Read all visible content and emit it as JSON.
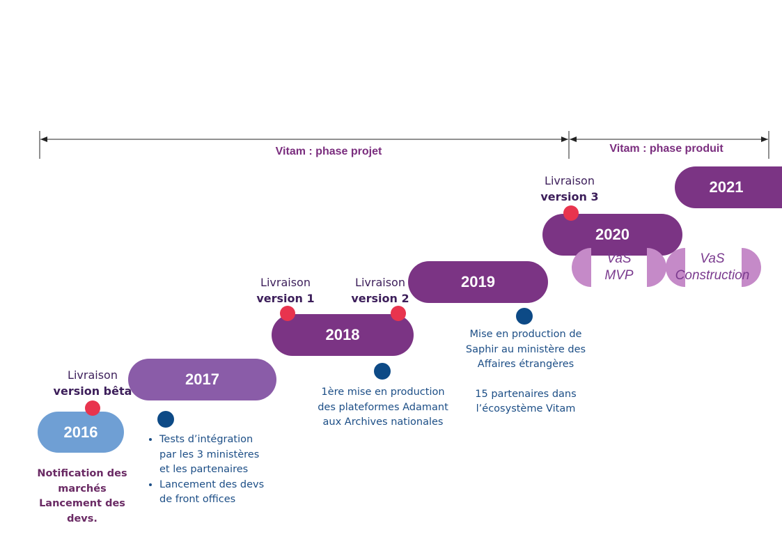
{
  "phases": {
    "project_label": "Vitam : phase projet",
    "product_label": "Vitam : phase produit"
  },
  "years": {
    "y2016": "2016",
    "y2017": "2017",
    "y2018": "2018",
    "y2019": "2019",
    "y2020": "2020",
    "y2021": "2021"
  },
  "deliveries": {
    "beta": {
      "line1": "Livraison",
      "line2": "version bêta"
    },
    "v1": {
      "line1": "Livraison",
      "line2": "version 1"
    },
    "v2": {
      "line1": "Livraison",
      "line2": "version 2"
    },
    "v3": {
      "line1": "Livraison",
      "line2": "version 3"
    }
  },
  "notes": {
    "n2016": [
      "Notification des",
      "marchés",
      "Lancement des",
      "devs."
    ],
    "n2017": [
      [
        "Tests d’intégration",
        "par les 3 ministères",
        "et les partenaires"
      ],
      [
        "Lancement des devs",
        "de front offices"
      ]
    ],
    "n2018": [
      "1ère mise en production",
      "des plateformes Adamant",
      "aux Archives nationales"
    ],
    "n2019a": [
      "Mise en production de",
      "Saphir au ministère des",
      "Affaires étrangères"
    ],
    "n2019b": [
      "15 partenaires dans",
      "l’écosystème Vitam"
    ]
  },
  "vas": {
    "mvp": [
      "VaS",
      "MVP"
    ],
    "construction": [
      "VaS",
      "Construction"
    ]
  },
  "colors": {
    "y2016": "#6f9fd4",
    "y2017": "#8a5ca8",
    "y2018": "#7b3484",
    "y2019": "#7b3484",
    "y2020": "#7b3484",
    "y2021": "#7b3484",
    "delivery_dot": "#e8344e",
    "milestone_dot": "#0d4a86",
    "vas_cap": "#c58ac8"
  }
}
